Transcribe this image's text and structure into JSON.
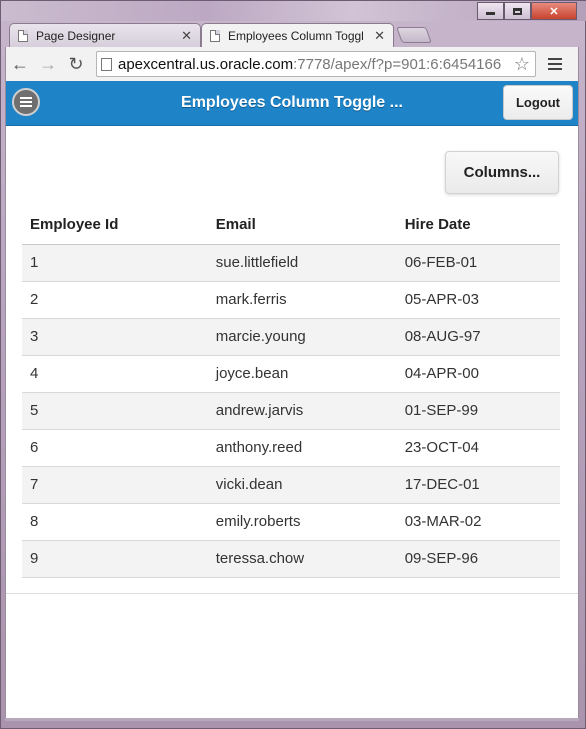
{
  "browser": {
    "tabs": [
      {
        "label": "Page Designer",
        "active": false
      },
      {
        "label": "Employees Column Toggl",
        "active": true
      }
    ],
    "url_host": "apexcentral.us.oracle.com",
    "url_path": ":7778/apex/f?p=901:6:6454166"
  },
  "header": {
    "title": "Employees Column Toggle ...",
    "logout_label": "Logout",
    "accent_color": "#1f84c7"
  },
  "toolbar": {
    "columns_label": "Columns..."
  },
  "table": {
    "columns": [
      "Employee Id",
      "Email",
      "Hire Date"
    ],
    "rows": [
      [
        "1",
        "sue.littlefield",
        "06-FEB-01"
      ],
      [
        "2",
        "mark.ferris",
        "05-APR-03"
      ],
      [
        "3",
        "marcie.young",
        "08-AUG-97"
      ],
      [
        "4",
        "joyce.bean",
        "04-APR-00"
      ],
      [
        "5",
        "andrew.jarvis",
        "01-SEP-99"
      ],
      [
        "6",
        "anthony.reed",
        "23-OCT-04"
      ],
      [
        "7",
        "vicki.dean",
        "17-DEC-01"
      ],
      [
        "8",
        "emily.roberts",
        "03-MAR-02"
      ],
      [
        "9",
        "teressa.chow",
        "09-SEP-96"
      ]
    ]
  }
}
